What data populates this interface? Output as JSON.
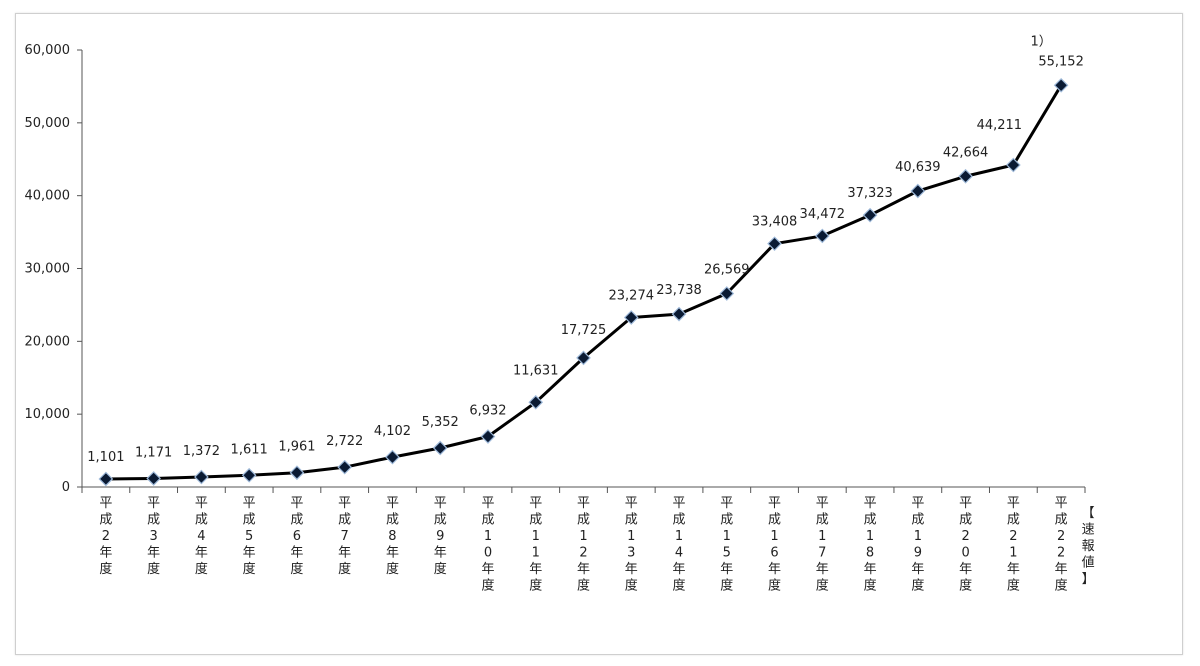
{
  "chart_data": {
    "type": "line",
    "title": "",
    "xlabel": "",
    "ylabel": "",
    "ylim": [
      0,
      60000
    ],
    "yticks": [
      "0",
      "10,000",
      "20,000",
      "30,000",
      "40,000",
      "50,000",
      "60,000"
    ],
    "grid": false,
    "categories": [
      "平成2年度",
      "平成3年度",
      "平成4年度",
      "平成5年度",
      "平成6年度",
      "平成7年度",
      "平成8年度",
      "平成9年度",
      "平成10年度",
      "平成11年度",
      "平成12年度",
      "平成13年度",
      "平成14年度",
      "平成15年度",
      "平成16年度",
      "平成17年度",
      "平成18年度",
      "平成19年度",
      "平成20年度",
      "平成21年度",
      "平成22年度"
    ],
    "values": [
      1101,
      1171,
      1372,
      1611,
      1961,
      2722,
      4102,
      5352,
      6932,
      11631,
      17725,
      23274,
      23738,
      26569,
      33408,
      34472,
      37323,
      40639,
      42664,
      44211,
      55152
    ],
    "data_labels": [
      "1,101",
      "1,171",
      "1,372",
      "1,611",
      "1,961",
      "2,722",
      "4,102",
      "5,352",
      "6,932",
      "11,631",
      "17,725",
      "23,274",
      "23,738",
      "26,569",
      "33,408",
      "34,472",
      "37,323",
      "40,639",
      "42,664",
      "44,211",
      "55,152"
    ],
    "last_note": "1）",
    "last_category_note": "【速報値】",
    "colors": {
      "line": "#000000",
      "marker": "#0a1a33",
      "marker_outline": "#9db8d8"
    }
  }
}
